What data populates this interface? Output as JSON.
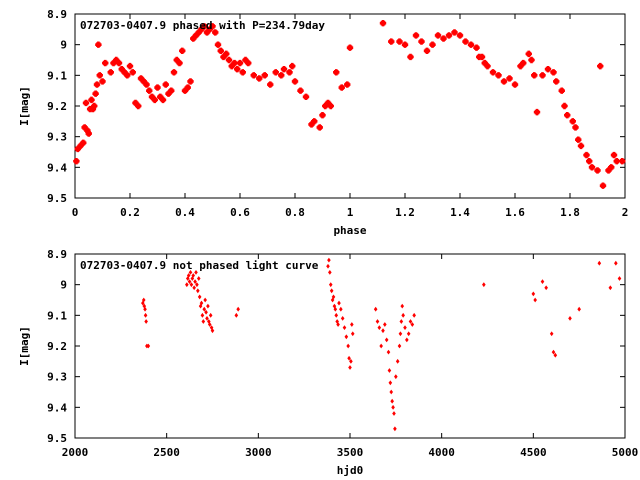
{
  "chart_data": [
    {
      "type": "scatter",
      "title": "072703-0407.9 phased with P=234.79day",
      "xlabel": "phase",
      "ylabel": "I[mag]",
      "xlim": [
        0,
        2
      ],
      "ylim": [
        9.5,
        8.9
      ],
      "y_inverted": true,
      "x_ticks": [
        "0",
        "0.2",
        "0.4",
        "0.6",
        "0.8",
        "1",
        "1.2",
        "1.4",
        "1.6",
        "1.8",
        "2"
      ],
      "y_ticks": [
        "8.9",
        "9",
        "9.1",
        "9.2",
        "9.3",
        "9.4",
        "9.5"
      ],
      "grid": false,
      "marker_color": "#ff0000",
      "series": [
        {
          "points": [
            [
              0.005,
              9.38
            ],
            [
              0.01,
              9.34
            ],
            [
              0.02,
              9.33
            ],
            [
              0.03,
              9.32
            ],
            [
              0.035,
              9.27
            ],
            [
              0.04,
              9.19
            ],
            [
              0.045,
              9.28
            ],
            [
              0.05,
              9.29
            ],
            [
              0.055,
              9.21
            ],
            [
              0.06,
              9.18
            ],
            [
              0.065,
              9.21
            ],
            [
              0.07,
              9.2
            ],
            [
              0.075,
              9.16
            ],
            [
              0.08,
              9.13
            ],
            [
              0.085,
              9.0
            ],
            [
              0.09,
              9.1
            ],
            [
              0.1,
              9.12
            ],
            [
              0.11,
              9.06
            ],
            [
              0.13,
              9.09
            ],
            [
              0.14,
              9.06
            ],
            [
              0.15,
              9.05
            ],
            [
              0.16,
              9.06
            ],
            [
              0.17,
              9.08
            ],
            [
              0.18,
              9.09
            ],
            [
              0.19,
              9.1
            ],
            [
              0.2,
              9.07
            ],
            [
              0.21,
              9.09
            ],
            [
              0.22,
              9.19
            ],
            [
              0.23,
              9.2
            ],
            [
              0.24,
              9.11
            ],
            [
              0.25,
              9.12
            ],
            [
              0.26,
              9.13
            ],
            [
              0.27,
              9.15
            ],
            [
              0.28,
              9.17
            ],
            [
              0.29,
              9.18
            ],
            [
              0.3,
              9.14
            ],
            [
              0.31,
              9.17
            ],
            [
              0.32,
              9.18
            ],
            [
              0.33,
              9.13
            ],
            [
              0.34,
              9.16
            ],
            [
              0.35,
              9.15
            ],
            [
              0.36,
              9.09
            ],
            [
              0.37,
              9.05
            ],
            [
              0.38,
              9.06
            ],
            [
              0.39,
              9.02
            ],
            [
              0.4,
              9.15
            ],
            [
              0.41,
              9.14
            ],
            [
              0.42,
              9.12
            ],
            [
              0.43,
              8.98
            ],
            [
              0.44,
              8.97
            ],
            [
              0.45,
              8.96
            ],
            [
              0.46,
              8.95
            ],
            [
              0.47,
              8.94
            ],
            [
              0.48,
              8.96
            ],
            [
              0.49,
              8.95
            ],
            [
              0.5,
              8.94
            ],
            [
              0.51,
              8.96
            ],
            [
              0.52,
              9.0
            ],
            [
              0.53,
              9.02
            ],
            [
              0.54,
              9.04
            ],
            [
              0.55,
              9.03
            ],
            [
              0.56,
              9.05
            ],
            [
              0.57,
              9.07
            ],
            [
              0.58,
              9.06
            ],
            [
              0.59,
              9.08
            ],
            [
              0.6,
              9.06
            ],
            [
              0.61,
              9.09
            ],
            [
              0.62,
              9.05
            ],
            [
              0.63,
              9.06
            ],
            [
              0.65,
              9.1
            ],
            [
              0.67,
              9.11
            ],
            [
              0.69,
              9.1
            ],
            [
              0.71,
              9.13
            ],
            [
              0.73,
              9.09
            ],
            [
              0.75,
              9.1
            ],
            [
              0.76,
              9.08
            ],
            [
              0.78,
              9.09
            ],
            [
              0.79,
              9.07
            ],
            [
              0.8,
              9.12
            ],
            [
              0.82,
              9.15
            ],
            [
              0.84,
              9.17
            ],
            [
              0.86,
              9.26
            ],
            [
              0.87,
              9.25
            ],
            [
              0.89,
              9.27
            ],
            [
              0.9,
              9.23
            ],
            [
              0.91,
              9.2
            ],
            [
              0.92,
              9.19
            ],
            [
              0.93,
              9.2
            ],
            [
              0.95,
              9.09
            ],
            [
              0.97,
              9.14
            ],
            [
              0.99,
              9.13
            ],
            [
              1.0,
              9.01
            ],
            [
              1.12,
              8.93
            ],
            [
              1.15,
              8.99
            ],
            [
              1.18,
              8.99
            ],
            [
              1.2,
              9.0
            ],
            [
              1.22,
              9.04
            ],
            [
              1.24,
              8.97
            ],
            [
              1.26,
              8.99
            ],
            [
              1.28,
              9.02
            ],
            [
              1.3,
              9.0
            ],
            [
              1.32,
              8.97
            ],
            [
              1.34,
              8.98
            ],
            [
              1.36,
              8.97
            ],
            [
              1.38,
              8.96
            ],
            [
              1.4,
              8.97
            ],
            [
              1.42,
              8.99
            ],
            [
              1.44,
              9.0
            ],
            [
              1.46,
              9.01
            ],
            [
              1.47,
              9.04
            ],
            [
              1.48,
              9.04
            ],
            [
              1.49,
              9.06
            ],
            [
              1.5,
              9.07
            ],
            [
              1.52,
              9.09
            ],
            [
              1.54,
              9.1
            ],
            [
              1.56,
              9.12
            ],
            [
              1.58,
              9.11
            ],
            [
              1.6,
              9.13
            ],
            [
              1.62,
              9.07
            ],
            [
              1.63,
              9.06
            ],
            [
              1.65,
              9.03
            ],
            [
              1.66,
              9.05
            ],
            [
              1.67,
              9.1
            ],
            [
              1.68,
              9.22
            ],
            [
              1.7,
              9.1
            ],
            [
              1.72,
              9.08
            ],
            [
              1.74,
              9.09
            ],
            [
              1.75,
              9.12
            ],
            [
              1.77,
              9.15
            ],
            [
              1.78,
              9.2
            ],
            [
              1.79,
              9.23
            ],
            [
              1.81,
              9.25
            ],
            [
              1.82,
              9.27
            ],
            [
              1.83,
              9.31
            ],
            [
              1.84,
              9.33
            ],
            [
              1.86,
              9.36
            ],
            [
              1.87,
              9.38
            ],
            [
              1.88,
              9.4
            ],
            [
              1.9,
              9.41
            ],
            [
              1.92,
              9.46
            ],
            [
              1.94,
              9.41
            ],
            [
              1.95,
              9.4
            ],
            [
              1.96,
              9.36
            ],
            [
              1.97,
              9.38
            ],
            [
              1.99,
              9.38
            ],
            [
              1.91,
              9.07
            ]
          ]
        }
      ]
    },
    {
      "type": "scatter",
      "title": "072703-0407.9 not phased light curve",
      "xlabel": "hjd0",
      "ylabel": "I[mag]",
      "xlim": [
        2000,
        5000
      ],
      "ylim": [
        9.5,
        8.9
      ],
      "y_inverted": true,
      "x_ticks": [
        "2000",
        "2500",
        "3000",
        "3500",
        "4000",
        "4500",
        "5000"
      ],
      "y_ticks": [
        "8.9",
        "9",
        "9.1",
        "9.2",
        "9.3",
        "9.4",
        "9.5"
      ],
      "grid": false,
      "marker_color": "#ff0000",
      "series": [
        {
          "points": [
            [
              2370,
              9.06
            ],
            [
              2375,
              9.05
            ],
            [
              2378,
              9.07
            ],
            [
              2382,
              9.08
            ],
            [
              2385,
              9.1
            ],
            [
              2388,
              9.12
            ],
            [
              2392,
              9.2
            ],
            [
              2400,
              9.2
            ],
            [
              2610,
              9.0
            ],
            [
              2615,
              8.98
            ],
            [
              2620,
              8.97
            ],
            [
              2625,
              8.99
            ],
            [
              2630,
              8.96
            ],
            [
              2635,
              9.0
            ],
            [
              2640,
              8.98
            ],
            [
              2645,
              8.97
            ],
            [
              2650,
              9.01
            ],
            [
              2655,
              8.99
            ],
            [
              2660,
              8.96
            ],
            [
              2665,
              9.0
            ],
            [
              2670,
              9.02
            ],
            [
              2675,
              8.98
            ],
            [
              2680,
              9.04
            ],
            [
              2685,
              9.07
            ],
            [
              2690,
              9.06
            ],
            [
              2695,
              9.1
            ],
            [
              2700,
              9.12
            ],
            [
              2705,
              9.08
            ],
            [
              2710,
              9.05
            ],
            [
              2715,
              9.09
            ],
            [
              2720,
              9.11
            ],
            [
              2725,
              9.07
            ],
            [
              2730,
              9.12
            ],
            [
              2735,
              9.13
            ],
            [
              2740,
              9.1
            ],
            [
              2745,
              9.14
            ],
            [
              2750,
              9.15
            ],
            [
              2880,
              9.1
            ],
            [
              2890,
              9.08
            ],
            [
              3380,
              8.94
            ],
            [
              3385,
              8.92
            ],
            [
              3390,
              8.96
            ],
            [
              3395,
              9.0
            ],
            [
              3400,
              9.02
            ],
            [
              3405,
              9.05
            ],
            [
              3410,
              9.04
            ],
            [
              3415,
              9.07
            ],
            [
              3420,
              9.08
            ],
            [
              3425,
              9.1
            ],
            [
              3430,
              9.12
            ],
            [
              3435,
              9.13
            ],
            [
              3440,
              9.06
            ],
            [
              3450,
              9.08
            ],
            [
              3460,
              9.11
            ],
            [
              3470,
              9.14
            ],
            [
              3480,
              9.17
            ],
            [
              3490,
              9.2
            ],
            [
              3495,
              9.24
            ],
            [
              3500,
              9.27
            ],
            [
              3505,
              9.25
            ],
            [
              3510,
              9.13
            ],
            [
              3515,
              9.16
            ],
            [
              3640,
              9.08
            ],
            [
              3650,
              9.12
            ],
            [
              3660,
              9.14
            ],
            [
              3670,
              9.2
            ],
            [
              3680,
              9.15
            ],
            [
              3690,
              9.13
            ],
            [
              3700,
              9.18
            ],
            [
              3710,
              9.22
            ],
            [
              3715,
              9.28
            ],
            [
              3720,
              9.32
            ],
            [
              3725,
              9.35
            ],
            [
              3730,
              9.38
            ],
            [
              3735,
              9.4
            ],
            [
              3740,
              9.42
            ],
            [
              3745,
              9.47
            ],
            [
              3750,
              9.3
            ],
            [
              3760,
              9.25
            ],
            [
              3770,
              9.2
            ],
            [
              3775,
              9.16
            ],
            [
              3780,
              9.12
            ],
            [
              3785,
              9.07
            ],
            [
              3790,
              9.1
            ],
            [
              3800,
              9.14
            ],
            [
              3810,
              9.18
            ],
            [
              3820,
              9.16
            ],
            [
              3830,
              9.12
            ],
            [
              3840,
              9.13
            ],
            [
              3850,
              9.1
            ],
            [
              4230,
              9.0
            ],
            [
              4500,
              9.03
            ],
            [
              4510,
              9.05
            ],
            [
              4550,
              8.99
            ],
            [
              4570,
              9.01
            ],
            [
              4600,
              9.16
            ],
            [
              4610,
              9.22
            ],
            [
              4620,
              9.23
            ],
            [
              4700,
              9.11
            ],
            [
              4750,
              9.08
            ],
            [
              4860,
              8.93
            ],
            [
              4920,
              9.01
            ],
            [
              4950,
              8.93
            ],
            [
              4970,
              8.98
            ]
          ]
        }
      ]
    }
  ]
}
